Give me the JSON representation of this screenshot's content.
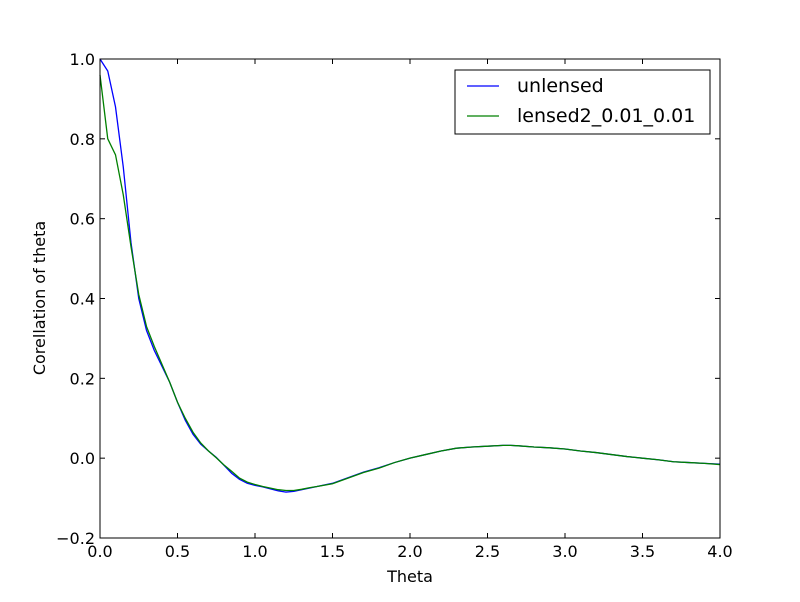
{
  "chart_data": {
    "type": "line",
    "title": "",
    "xlabel": "Theta",
    "ylabel": "Corellation of theta",
    "xlim": [
      0.0,
      4.0
    ],
    "ylim": [
      -0.2,
      1.0
    ],
    "xticks": [
      "0.0",
      "0.5",
      "1.0",
      "1.5",
      "2.0",
      "2.5",
      "3.0",
      "3.5",
      "4.0"
    ],
    "yticks": [
      "−0.2",
      "0.0",
      "0.2",
      "0.4",
      "0.6",
      "0.8",
      "1.0"
    ],
    "grid": false,
    "legend_position": "top-right",
    "series": [
      {
        "name": "unlensed",
        "color": "#0000ff",
        "x": [
          0.0,
          0.05,
          0.1,
          0.15,
          0.2,
          0.25,
          0.3,
          0.35,
          0.4,
          0.45,
          0.5,
          0.55,
          0.6,
          0.65,
          0.7,
          0.75,
          0.8,
          0.85,
          0.9,
          0.95,
          1.0,
          1.05,
          1.1,
          1.15,
          1.2,
          1.25,
          1.3,
          1.35,
          1.4,
          1.5,
          1.6,
          1.7,
          1.8,
          1.9,
          2.0,
          2.1,
          2.2,
          2.3,
          2.4,
          2.5,
          2.6,
          2.65,
          2.7,
          2.8,
          2.9,
          3.0,
          3.1,
          3.2,
          3.3,
          3.4,
          3.5,
          3.6,
          3.7,
          3.8,
          3.9,
          4.0
        ],
        "y": [
          1.0,
          0.97,
          0.88,
          0.73,
          0.54,
          0.4,
          0.32,
          0.27,
          0.23,
          0.19,
          0.14,
          0.095,
          0.06,
          0.035,
          0.018,
          0.002,
          -0.018,
          -0.038,
          -0.053,
          -0.063,
          -0.068,
          -0.072,
          -0.077,
          -0.082,
          -0.085,
          -0.083,
          -0.079,
          -0.075,
          -0.071,
          -0.063,
          -0.049,
          -0.035,
          -0.024,
          -0.011,
          0.0,
          0.009,
          0.018,
          0.025,
          0.028,
          0.03,
          0.032,
          0.032,
          0.031,
          0.028,
          0.026,
          0.023,
          0.018,
          0.014,
          0.009,
          0.004,
          0.0,
          -0.004,
          -0.009,
          -0.011,
          -0.013,
          -0.015
        ]
      },
      {
        "name": "lensed2_0.01_0.01",
        "color": "#008000",
        "x": [
          0.0,
          0.05,
          0.1,
          0.15,
          0.2,
          0.25,
          0.3,
          0.35,
          0.4,
          0.45,
          0.5,
          0.55,
          0.6,
          0.65,
          0.7,
          0.75,
          0.8,
          0.85,
          0.9,
          0.95,
          1.0,
          1.05,
          1.1,
          1.15,
          1.2,
          1.25,
          1.3,
          1.35,
          1.4,
          1.5,
          1.6,
          1.7,
          1.8,
          1.9,
          2.0,
          2.1,
          2.2,
          2.3,
          2.4,
          2.5,
          2.6,
          2.65,
          2.7,
          2.8,
          2.9,
          3.0,
          3.1,
          3.2,
          3.3,
          3.4,
          3.5,
          3.6,
          3.7,
          3.8,
          3.9,
          4.0
        ],
        "y": [
          0.96,
          0.8,
          0.76,
          0.66,
          0.53,
          0.41,
          0.33,
          0.28,
          0.235,
          0.19,
          0.14,
          0.1,
          0.065,
          0.038,
          0.018,
          0.001,
          -0.017,
          -0.033,
          -0.05,
          -0.06,
          -0.066,
          -0.071,
          -0.075,
          -0.079,
          -0.081,
          -0.081,
          -0.078,
          -0.074,
          -0.071,
          -0.064,
          -0.05,
          -0.036,
          -0.025,
          -0.011,
          0.0,
          0.009,
          0.018,
          0.025,
          0.028,
          0.03,
          0.032,
          0.032,
          0.031,
          0.028,
          0.026,
          0.023,
          0.018,
          0.014,
          0.009,
          0.004,
          0.0,
          -0.004,
          -0.009,
          -0.011,
          -0.013,
          -0.016
        ]
      }
    ]
  }
}
